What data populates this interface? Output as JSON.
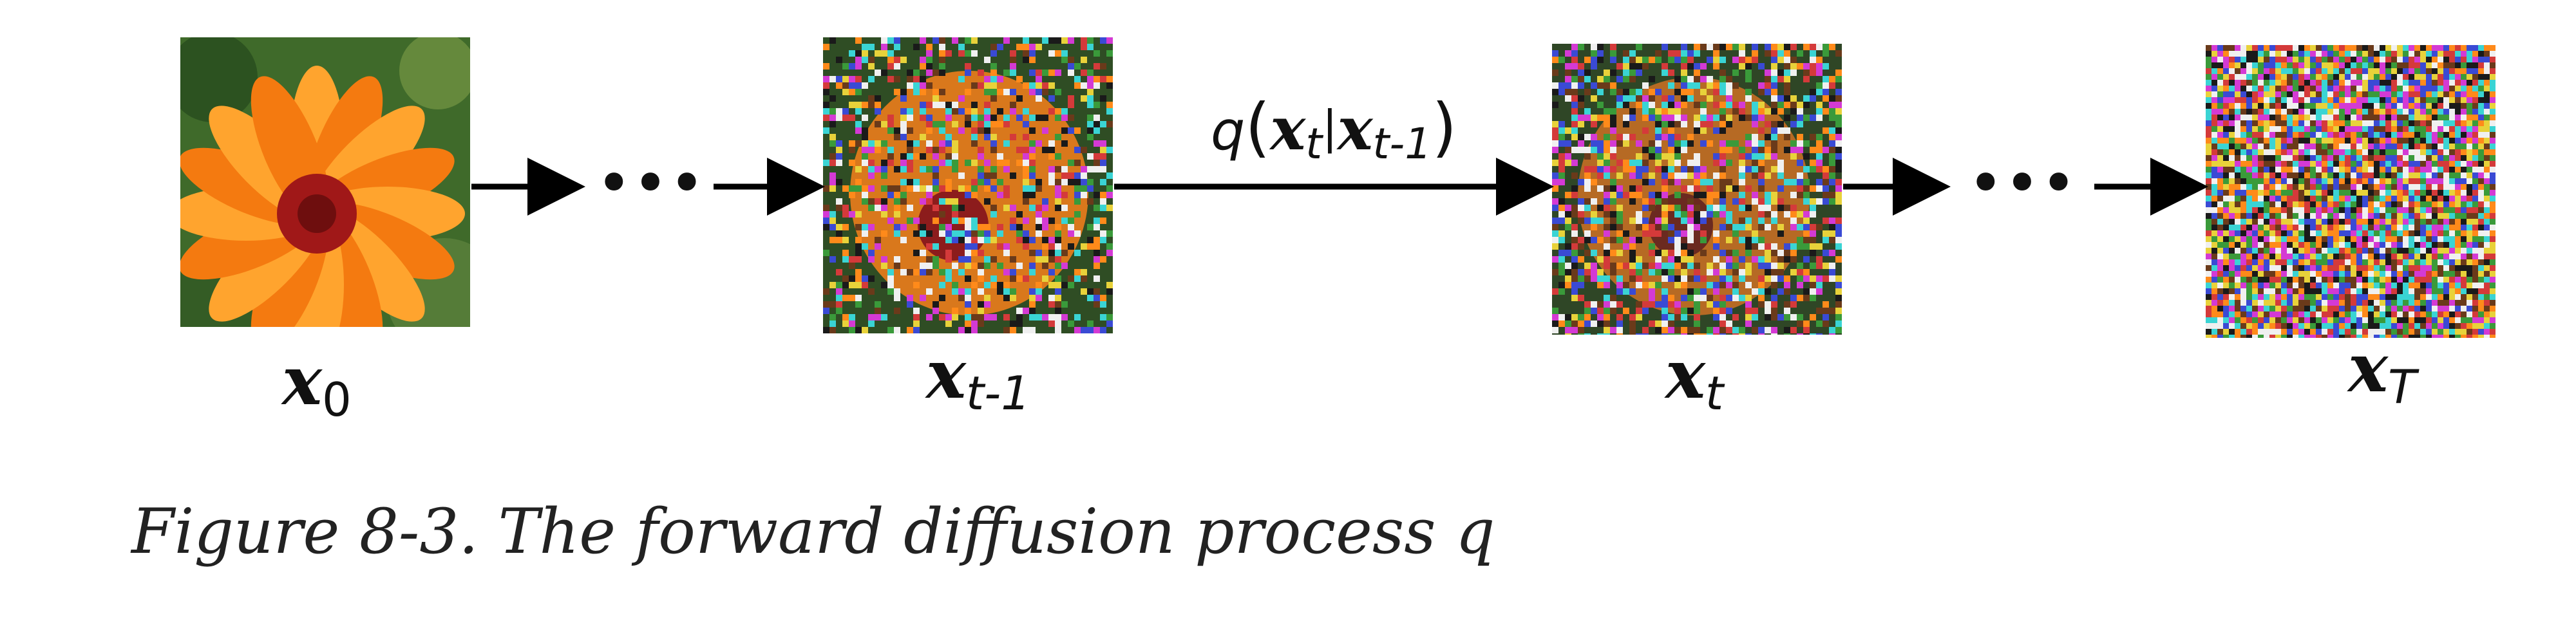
{
  "diagram": {
    "images": [
      {
        "id": "x0",
        "kind": "flower",
        "label_var": "x",
        "label_sub": "0"
      },
      {
        "id": "xt1",
        "kind": "noisy-flower-light",
        "label_var": "x",
        "label_sub": "t-1"
      },
      {
        "id": "xt",
        "kind": "noisy-flower-heavy",
        "label_var": "x",
        "label_sub": "t"
      },
      {
        "id": "xT",
        "kind": "pure-noise",
        "label_var": "x",
        "label_sub": "T"
      }
    ],
    "transition_label": {
      "func": "q",
      "open_paren": "(",
      "var1": "x",
      "sub1": "t",
      "bar": "|",
      "var2": "x",
      "sub2": "t-1",
      "close_paren": ")"
    },
    "ellipsis": "•••",
    "colors": {
      "arrow": "#000000",
      "petal": "#f47a10",
      "petal_light": "#ffa42e",
      "center": "#a01818",
      "leaf": "#3f6a2a"
    }
  },
  "caption": "Figure 8-3. The forward diffusion process q"
}
